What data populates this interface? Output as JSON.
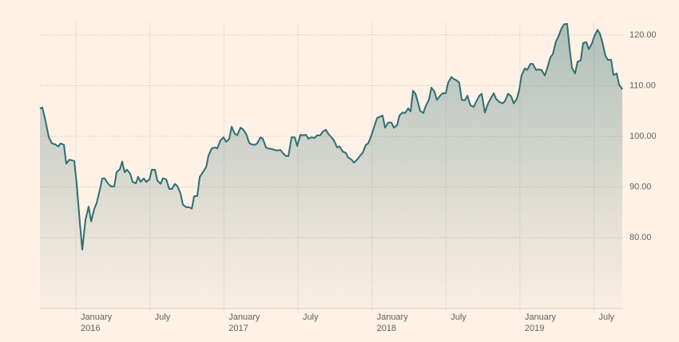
{
  "chart_data": {
    "type": "area",
    "color": "#2e6e73",
    "grid": true,
    "y_axis_side": "right",
    "xlim": [
      2015.757,
      2019.697
    ],
    "ylim": [
      66,
      122.5
    ],
    "xticks": [
      {
        "value": 2016,
        "label": "January\n2016"
      },
      {
        "value": 2016.5,
        "label": "July"
      },
      {
        "value": 2017,
        "label": "January\n2017"
      },
      {
        "value": 2017.5,
        "label": "July"
      },
      {
        "value": 2018,
        "label": "January\n2018"
      },
      {
        "value": 2018.5,
        "label": "July"
      },
      {
        "value": 2019,
        "label": "January\n2019"
      },
      {
        "value": 2019.5,
        "label": "July"
      }
    ],
    "yticks": [
      {
        "value": 80,
        "label": "80.00"
      },
      {
        "value": 90,
        "label": "90.00"
      },
      {
        "value": 100,
        "label": "100.00"
      },
      {
        "value": 110,
        "label": "110.00"
      },
      {
        "value": 120,
        "label": "120.00"
      }
    ],
    "x": [
      2015.757,
      2015.773,
      2015.795,
      2015.817,
      2015.838,
      2015.86,
      2015.881,
      2015.897,
      2015.919,
      2015.935,
      2015.957,
      2015.989,
      2016.005,
      2016.027,
      2016.043,
      2016.065,
      2016.086,
      2016.103,
      2016.124,
      2016.14,
      2016.162,
      2016.178,
      2016.194,
      2016.216,
      2016.237,
      2016.259,
      2016.275,
      2016.297,
      2016.313,
      2016.329,
      2016.345,
      2016.367,
      2016.383,
      2016.405,
      2016.421,
      2016.437,
      2016.459,
      2016.475,
      2016.497,
      2016.513,
      2016.534,
      2016.55,
      2016.572,
      2016.588,
      2016.61,
      2016.631,
      2016.648,
      2016.669,
      2016.685,
      2016.707,
      2016.723,
      2016.745,
      2016.766,
      2016.783,
      2016.799,
      2016.82,
      2016.837,
      2016.858,
      2016.88,
      2016.896,
      2016.918,
      2016.939,
      2016.955,
      2016.977,
      2016.998,
      2017.015,
      2017.036,
      2017.052,
      2017.074,
      2017.09,
      2017.112,
      2017.128,
      2017.15,
      2017.171,
      2017.187,
      2017.209,
      2017.225,
      2017.247,
      2017.263,
      2017.284,
      2017.301,
      2017.322,
      2017.344,
      2017.36,
      2017.382,
      2017.398,
      2017.419,
      2017.436,
      2017.457,
      2017.479,
      2017.495,
      2017.517,
      2017.533,
      2017.554,
      2017.571,
      2017.592,
      2017.614,
      2017.63,
      2017.651,
      2017.668,
      2017.689,
      2017.705,
      2017.727,
      2017.743,
      2017.765,
      2017.781,
      2017.803,
      2017.824,
      2017.84,
      2017.862,
      2017.878,
      2017.9,
      2017.921,
      2017.937,
      2017.959,
      2017.975,
      2017.997,
      2018.013,
      2018.035,
      2018.056,
      2018.072,
      2018.089,
      2018.11,
      2018.132,
      2018.148,
      2018.17,
      2018.186,
      2018.207,
      2018.224,
      2018.245,
      2018.261,
      2018.278,
      2018.294,
      2018.31,
      2018.326,
      2018.348,
      2018.364,
      2018.385,
      2018.402,
      2018.423,
      2018.439,
      2018.461,
      2018.477,
      2018.499,
      2018.515,
      2018.537,
      2018.553,
      2018.574,
      2018.59,
      2018.607,
      2018.628,
      2018.645,
      2018.666,
      2018.688,
      2018.704,
      2018.726,
      2018.742,
      2018.763,
      2018.785,
      2018.801,
      2018.823,
      2018.839,
      2018.86,
      2018.882,
      2018.898,
      2018.92,
      2018.941,
      2018.958,
      2018.979,
      2018.995,
      2019.011,
      2019.033,
      2019.049,
      2019.071,
      2019.087,
      2019.109,
      2019.125,
      2019.146,
      2019.168,
      2019.184,
      2019.206,
      2019.222,
      2019.243,
      2019.26,
      2019.281,
      2019.298,
      2019.319,
      2019.335,
      2019.352,
      2019.373,
      2019.389,
      2019.411,
      2019.427,
      2019.449,
      2019.465,
      2019.486,
      2019.503,
      2019.524,
      2019.54,
      2019.556,
      2019.578,
      2019.594,
      2019.616,
      2019.632,
      2019.654,
      2019.67,
      2019.692
    ],
    "values": [
      105.5,
      105.7,
      103.0,
      99.8,
      98.6,
      98.4,
      98.0,
      98.6,
      98.3,
      94.6,
      95.4,
      95.1,
      90.7,
      82.8,
      77.6,
      83.6,
      86.1,
      83.2,
      85.7,
      86.8,
      89.5,
      91.7,
      91.7,
      90.7,
      90.1,
      90.1,
      92.9,
      93.5,
      95.0,
      92.9,
      93.4,
      92.6,
      91.0,
      90.7,
      92.0,
      91.0,
      91.7,
      91.0,
      91.5,
      93.4,
      93.4,
      91.3,
      90.6,
      91.7,
      91.5,
      89.6,
      89.6,
      90.6,
      90.2,
      88.7,
      86.5,
      86.0,
      86.0,
      85.7,
      88.2,
      88.2,
      92.0,
      92.9,
      93.9,
      96.2,
      97.6,
      97.8,
      97.6,
      99.2,
      99.8,
      98.9,
      99.5,
      101.9,
      100.5,
      100.2,
      101.7,
      101.4,
      100.5,
      98.7,
      98.4,
      98.3,
      98.6,
      99.8,
      99.5,
      97.8,
      97.6,
      97.5,
      97.3,
      97.2,
      97.3,
      96.7,
      96.1,
      96.1,
      99.8,
      99.8,
      98.1,
      100.3,
      100.2,
      100.3,
      99.5,
      99.8,
      99.7,
      100.2,
      100.2,
      100.9,
      101.3,
      100.5,
      99.8,
      99.2,
      97.8,
      98.0,
      97.0,
      96.7,
      95.8,
      95.4,
      94.8,
      95.4,
      96.2,
      96.7,
      98.3,
      98.6,
      100.2,
      101.7,
      103.6,
      103.9,
      104.1,
      101.7,
      102.7,
      102.7,
      101.7,
      102.2,
      104.1,
      104.7,
      104.6,
      105.5,
      104.9,
      109.0,
      108.4,
      106.8,
      105.0,
      104.6,
      106.0,
      107.2,
      109.6,
      108.8,
      107.2,
      108.0,
      108.5,
      108.5,
      110.6,
      111.7,
      111.3,
      111.0,
      110.6,
      107.2,
      107.1,
      108.0,
      106.1,
      105.8,
      106.8,
      108.0,
      108.4,
      104.7,
      106.5,
      107.4,
      108.5,
      107.4,
      106.8,
      106.5,
      106.9,
      108.4,
      107.9,
      106.5,
      107.4,
      109.1,
      112.0,
      113.4,
      113.1,
      114.3,
      114.3,
      113.1,
      113.2,
      113.1,
      112.0,
      113.4,
      115.6,
      116.2,
      118.7,
      119.7,
      121.3,
      122.1,
      122.2,
      117.5,
      113.5,
      112.4,
      114.7,
      115.0,
      118.4,
      118.6,
      117.2,
      118.3,
      119.8,
      121.0,
      120.3,
      118.7,
      115.9,
      115.1,
      115.1,
      112.1,
      112.4,
      110.2,
      109.3
    ]
  }
}
